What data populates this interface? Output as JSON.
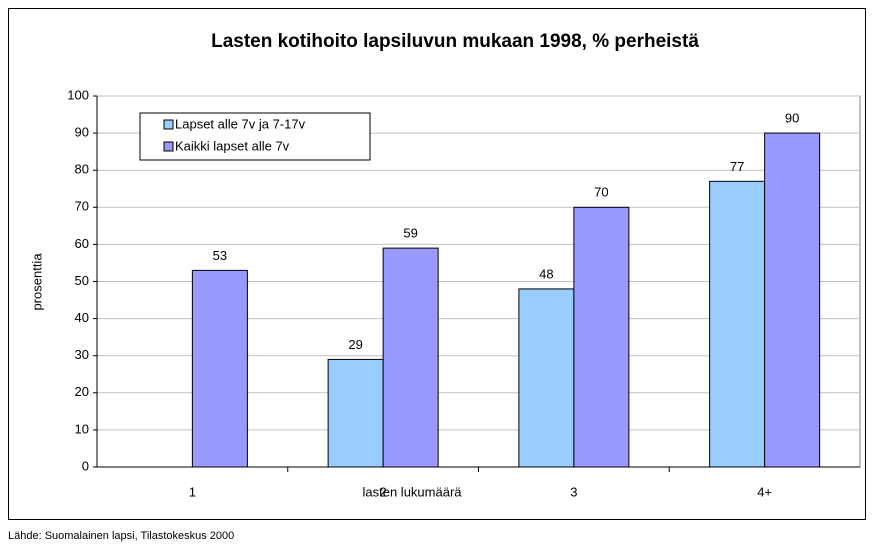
{
  "chart_data": {
    "type": "bar",
    "title": "Lasten kotihoito lapsiluvun mukaan 1998, % perheistä",
    "categories": [
      "1",
      "2",
      "3",
      "4+"
    ],
    "series": [
      {
        "name": "Lapset alle 7v ja 7-17v",
        "color": "#99ccff",
        "values": [
          null,
          29,
          48,
          77
        ]
      },
      {
        "name": "Kaikki lapset alle 7v",
        "color": "#9999ff",
        "values": [
          53,
          59,
          70,
          90
        ]
      }
    ],
    "ylim": [
      0,
      100
    ],
    "yticks": [
      0,
      10,
      20,
      30,
      40,
      50,
      60,
      70,
      80,
      90,
      100
    ],
    "xlabel": "lasten lukumäärä",
    "ylabel": "prosenttia",
    "grid": true,
    "legend": "upper left",
    "source": "Lähde: Suomalainen lapsi, Tilastokeskus 2000"
  }
}
